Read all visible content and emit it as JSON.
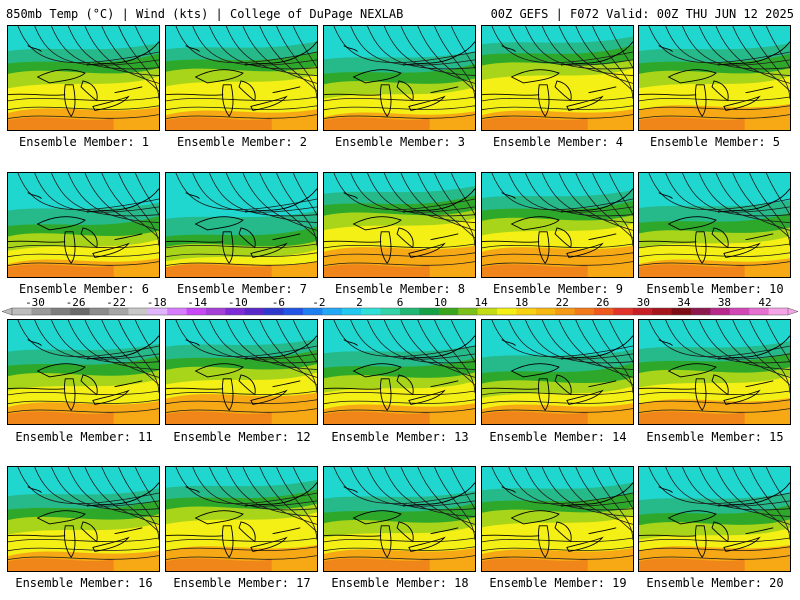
{
  "header": {
    "left": "850mb Temp (°C) | Wind (kts) | College of DuPage NEXLAB",
    "right": "00Z GEFS | F072 Valid: 00Z THU JUN 12 2025"
  },
  "member_label_prefix": "Ensemble Member:",
  "members": [
    {
      "id": 1,
      "label": "Ensemble Member: 1",
      "cool_extent": 0.3,
      "warm_extent": 0.22
    },
    {
      "id": 2,
      "label": "Ensemble Member: 2",
      "cool_extent": 0.28,
      "warm_extent": 0.2
    },
    {
      "id": 3,
      "label": "Ensemble Member: 3",
      "cool_extent": 0.4,
      "warm_extent": 0.18
    },
    {
      "id": 4,
      "label": "Ensemble Member: 4",
      "cool_extent": 0.22,
      "warm_extent": 0.2
    },
    {
      "id": 5,
      "label": "Ensemble Member: 5",
      "cool_extent": 0.3,
      "warm_extent": 0.25
    },
    {
      "id": 6,
      "label": "Ensemble Member: 6",
      "cool_extent": 0.45,
      "warm_extent": 0.18
    },
    {
      "id": 7,
      "label": "Ensemble Member: 7",
      "cool_extent": 0.55,
      "warm_extent": 0.15
    },
    {
      "id": 8,
      "label": "Ensemble Member: 8",
      "cool_extent": 0.25,
      "warm_extent": 0.3
    },
    {
      "id": 9,
      "label": "Ensemble Member: 9",
      "cool_extent": 0.3,
      "warm_extent": 0.3
    },
    {
      "id": 10,
      "label": "Ensemble Member: 10",
      "cool_extent": 0.42,
      "warm_extent": 0.18
    },
    {
      "id": 11,
      "label": "Ensemble Member: 11",
      "cool_extent": 0.38,
      "warm_extent": 0.22
    },
    {
      "id": 12,
      "label": "Ensemble Member: 12",
      "cool_extent": 0.32,
      "warm_extent": 0.3
    },
    {
      "id": 13,
      "label": "Ensemble Member: 13",
      "cool_extent": 0.4,
      "warm_extent": 0.2
    },
    {
      "id": 14,
      "label": "Ensemble Member: 14",
      "cool_extent": 0.45,
      "warm_extent": 0.2
    },
    {
      "id": 15,
      "label": "Ensemble Member: 15",
      "cool_extent": 0.35,
      "warm_extent": 0.25
    },
    {
      "id": 16,
      "label": "Ensemble Member: 16",
      "cool_extent": 0.35,
      "warm_extent": 0.2
    },
    {
      "id": 17,
      "label": "Ensemble Member: 17",
      "cool_extent": 0.25,
      "warm_extent": 0.25
    },
    {
      "id": 18,
      "label": "Ensemble Member: 18",
      "cool_extent": 0.38,
      "warm_extent": 0.22
    },
    {
      "id": 19,
      "label": "Ensemble Member: 19",
      "cool_extent": 0.28,
      "warm_extent": 0.22
    },
    {
      "id": 20,
      "label": "Ensemble Member: 20",
      "cool_extent": 0.4,
      "warm_extent": 0.25
    }
  ],
  "colorbar": {
    "labels": [
      "-30",
      "-26",
      "-22",
      "-18",
      "-14",
      "-10",
      "-6",
      "-2",
      "2",
      "6",
      "10",
      "14",
      "18",
      "22",
      "26",
      "30",
      "34",
      "38",
      "42"
    ],
    "colors": [
      "#bdbdbd",
      "#9a9a9a",
      "#7e7e7e",
      "#6a6a6a",
      "#8c8c8c",
      "#a6a6a6",
      "#c8c8c8",
      "#e0b4ff",
      "#d77cff",
      "#c847f7",
      "#a53fd8",
      "#7c2bd6",
      "#5a28c8",
      "#2f3acd",
      "#2254e6",
      "#1f7ff0",
      "#22a8f5",
      "#23c8f0",
      "#2fe0d8",
      "#35d3a8",
      "#20b874",
      "#14a147",
      "#3aa61d",
      "#7cc11a",
      "#c4dc14",
      "#f4ef14",
      "#f8d113",
      "#f7b812",
      "#f59a14",
      "#f37a18",
      "#ef5a1c",
      "#e2342a",
      "#c81e26",
      "#a6141e",
      "#7e0c16",
      "#8c1850",
      "#b8288c",
      "#d247b8",
      "#e66fd2",
      "#f4a4e6"
    ]
  },
  "legend": {
    "cool": "#20d7d0",
    "teal": "#26b98a",
    "green": "#2ea82a",
    "yellowgreen": "#a8d41a",
    "yellow": "#f4ef14",
    "orange": "#f6a915",
    "deeporange": "#ef7d1a"
  }
}
